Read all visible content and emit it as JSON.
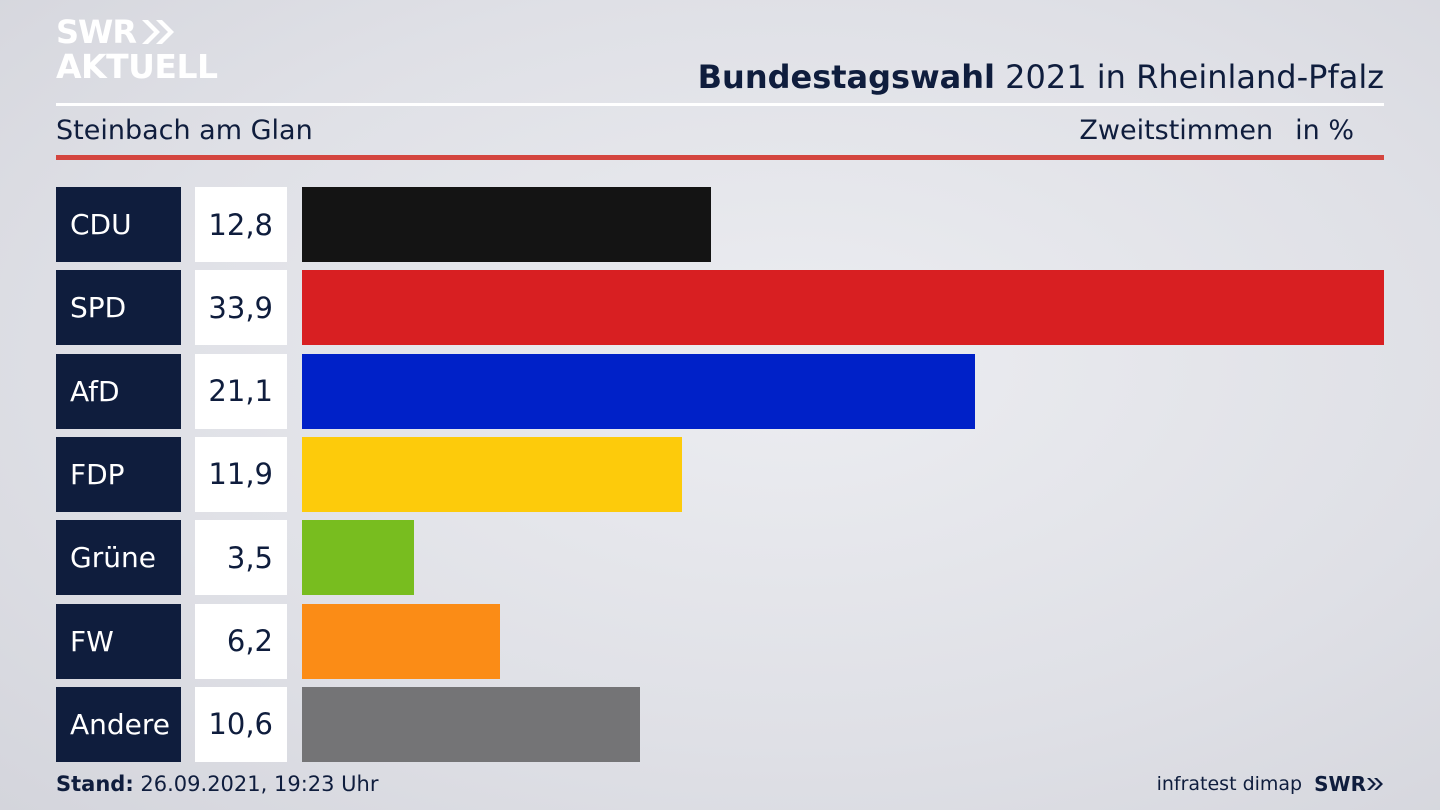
{
  "logo": {
    "line1": "SWR",
    "line2": "AKTUELL"
  },
  "header": {
    "title_bold": "Bundestagswahl",
    "title_rest": " 2021 in Rheinland-Pfalz",
    "subtitle": "Steinbach am Glan",
    "measure": "Zweitstimmen",
    "unit": "in %"
  },
  "chart_data": {
    "type": "bar",
    "orientation": "horizontal",
    "categories": [
      "CDU",
      "SPD",
      "AfD",
      "FDP",
      "Grüne",
      "FW",
      "Andere"
    ],
    "values": [
      12.8,
      33.9,
      21.1,
      11.9,
      3.5,
      6.2,
      10.6
    ],
    "value_labels": [
      "12,8",
      "33,9",
      "21,1",
      "11,9",
      "3,5",
      "6,2",
      "10,6"
    ],
    "colors": [
      "#141414",
      "#d81f22",
      "#0021c8",
      "#fdcb0b",
      "#78bd1f",
      "#fb8c16",
      "#747476"
    ],
    "xlim": [
      0,
      33.9
    ],
    "grid": false,
    "legend": "none"
  },
  "footer": {
    "stand_label": "Stand:",
    "stand_value": " 26.09.2021, 19:23 Uhr",
    "source": "infratest dimap",
    "brand": "SWR"
  }
}
